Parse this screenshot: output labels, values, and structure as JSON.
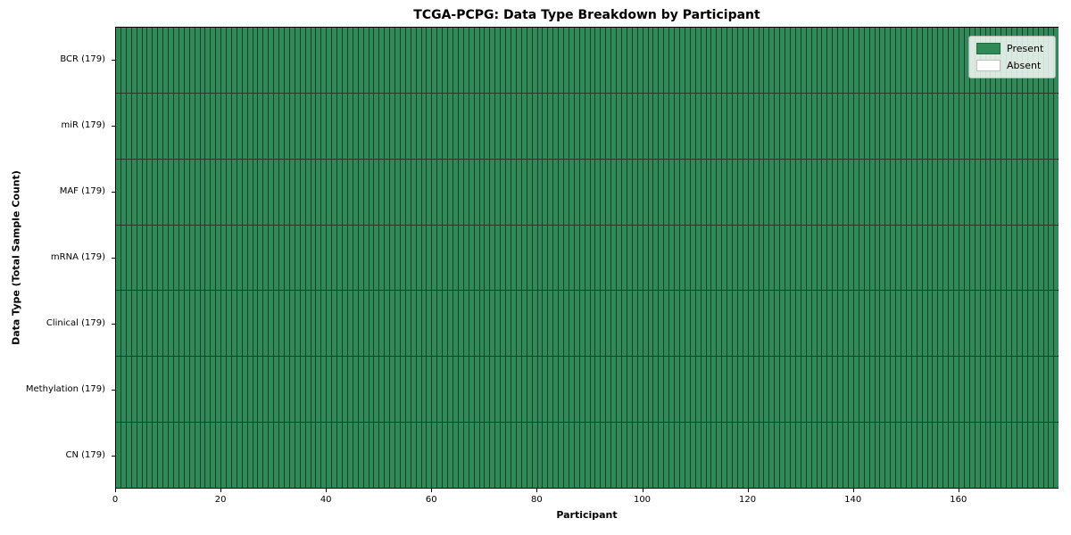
{
  "figure": {
    "background": "#ffffff"
  },
  "chart_data": {
    "type": "heatmap",
    "title": "TCGA-PCPG: Data Type Breakdown by Participant",
    "xlabel": "Participant",
    "ylabel": "Data Type (Total Sample Count)",
    "x_ticks": [
      0,
      20,
      40,
      60,
      80,
      100,
      120,
      140,
      160
    ],
    "xlim": [
      0,
      179
    ],
    "n_participants": 179,
    "rows": [
      {
        "label": "BCR (179)",
        "data_type": "BCR",
        "total_sample_count": 179,
        "present_participants": 179,
        "absent_participants": 0
      },
      {
        "label": "miR (179)",
        "data_type": "miR",
        "total_sample_count": 179,
        "present_participants": 179,
        "absent_participants": 0
      },
      {
        "label": "MAF (179)",
        "data_type": "MAF",
        "total_sample_count": 179,
        "present_participants": 179,
        "absent_participants": 0
      },
      {
        "label": "mRNA (179)",
        "data_type": "mRNA",
        "total_sample_count": 179,
        "present_participants": 179,
        "absent_participants": 0
      },
      {
        "label": "Clinical (179)",
        "data_type": "Clinical",
        "total_sample_count": 179,
        "present_participants": 179,
        "absent_participants": 0
      },
      {
        "label": "Methylation (179)",
        "data_type": "Methylation",
        "total_sample_count": 179,
        "present_participants": 179,
        "absent_participants": 0
      },
      {
        "label": "CN (179)",
        "data_type": "CN",
        "total_sample_count": 179,
        "present_participants": 179,
        "absent_participants": 0
      }
    ],
    "legend": {
      "position": "upper right",
      "entries": [
        {
          "label": "Present",
          "color": "#2e8b57"
        },
        {
          "label": "Absent",
          "color": "#ffffff"
        }
      ]
    },
    "colors": {
      "present": "#2e8b57",
      "absent": "#ffffff",
      "cell_edge": "#223c2c",
      "axis": "#000000"
    },
    "grid": false
  }
}
